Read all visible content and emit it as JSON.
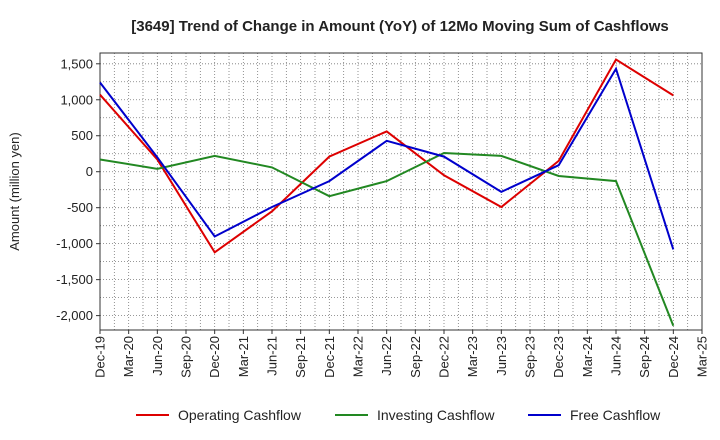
{
  "chart_data": {
    "type": "line",
    "title": "[3649]  Trend of Change in Amount (YoY) of 12Mo Moving Sum of Cashflows",
    "xlabel": "",
    "ylabel": "Amount (million yen)",
    "ylim": [
      -2200,
      1650
    ],
    "yticks": [
      1500,
      1000,
      500,
      0,
      -500,
      -1000,
      -1500,
      -2000
    ],
    "ytick_labels": [
      "1,500",
      "1,000",
      "500",
      "0",
      "-500",
      "-1,000",
      "-1,500",
      "-2,000"
    ],
    "categories": [
      "Dec-19",
      "Mar-20",
      "Jun-20",
      "Sep-20",
      "Dec-20",
      "Mar-21",
      "Jun-21",
      "Sep-21",
      "Dec-21",
      "Mar-22",
      "Jun-22",
      "Sep-22",
      "Dec-22",
      "Mar-23",
      "Jun-23",
      "Sep-23",
      "Dec-23",
      "Mar-24",
      "Jun-24",
      "Sep-24",
      "Dec-24",
      "Mar-25"
    ],
    "grid": true,
    "legend_position": "bottom",
    "series": [
      {
        "name": "Operating Cashflow",
        "color": "#dd0000",
        "points": [
          {
            "x": "Dec-19",
            "y": 1070
          },
          {
            "x": "Jun-20",
            "y": 170
          },
          {
            "x": "Dec-20",
            "y": -1120
          },
          {
            "x": "Jun-21",
            "y": -550
          },
          {
            "x": "Dec-21",
            "y": 210
          },
          {
            "x": "Jun-22",
            "y": 560
          },
          {
            "x": "Dec-22",
            "y": -50
          },
          {
            "x": "Jun-23",
            "y": -490
          },
          {
            "x": "Dec-23",
            "y": 150
          },
          {
            "x": "Jun-24",
            "y": 1560
          },
          {
            "x": "Dec-24",
            "y": 1060
          }
        ]
      },
      {
        "name": "Investing Cashflow",
        "color": "#228822",
        "points": [
          {
            "x": "Dec-19",
            "y": 170
          },
          {
            "x": "Jun-20",
            "y": 40
          },
          {
            "x": "Dec-20",
            "y": 220
          },
          {
            "x": "Jun-21",
            "y": 60
          },
          {
            "x": "Dec-21",
            "y": -340
          },
          {
            "x": "Jun-22",
            "y": -130
          },
          {
            "x": "Dec-22",
            "y": 260
          },
          {
            "x": "Jun-23",
            "y": 220
          },
          {
            "x": "Dec-23",
            "y": -60
          },
          {
            "x": "Jun-24",
            "y": -130
          },
          {
            "x": "Dec-24",
            "y": -2140
          }
        ]
      },
      {
        "name": "Free Cashflow",
        "color": "#0000cc",
        "points": [
          {
            "x": "Dec-19",
            "y": 1240
          },
          {
            "x": "Jun-20",
            "y": 200
          },
          {
            "x": "Dec-20",
            "y": -900
          },
          {
            "x": "Jun-21",
            "y": -490
          },
          {
            "x": "Dec-21",
            "y": -130
          },
          {
            "x": "Jun-22",
            "y": 430
          },
          {
            "x": "Dec-22",
            "y": 210
          },
          {
            "x": "Jun-23",
            "y": -280
          },
          {
            "x": "Dec-23",
            "y": 90
          },
          {
            "x": "Jun-24",
            "y": 1430
          },
          {
            "x": "Dec-24",
            "y": -1080
          }
        ]
      }
    ]
  }
}
